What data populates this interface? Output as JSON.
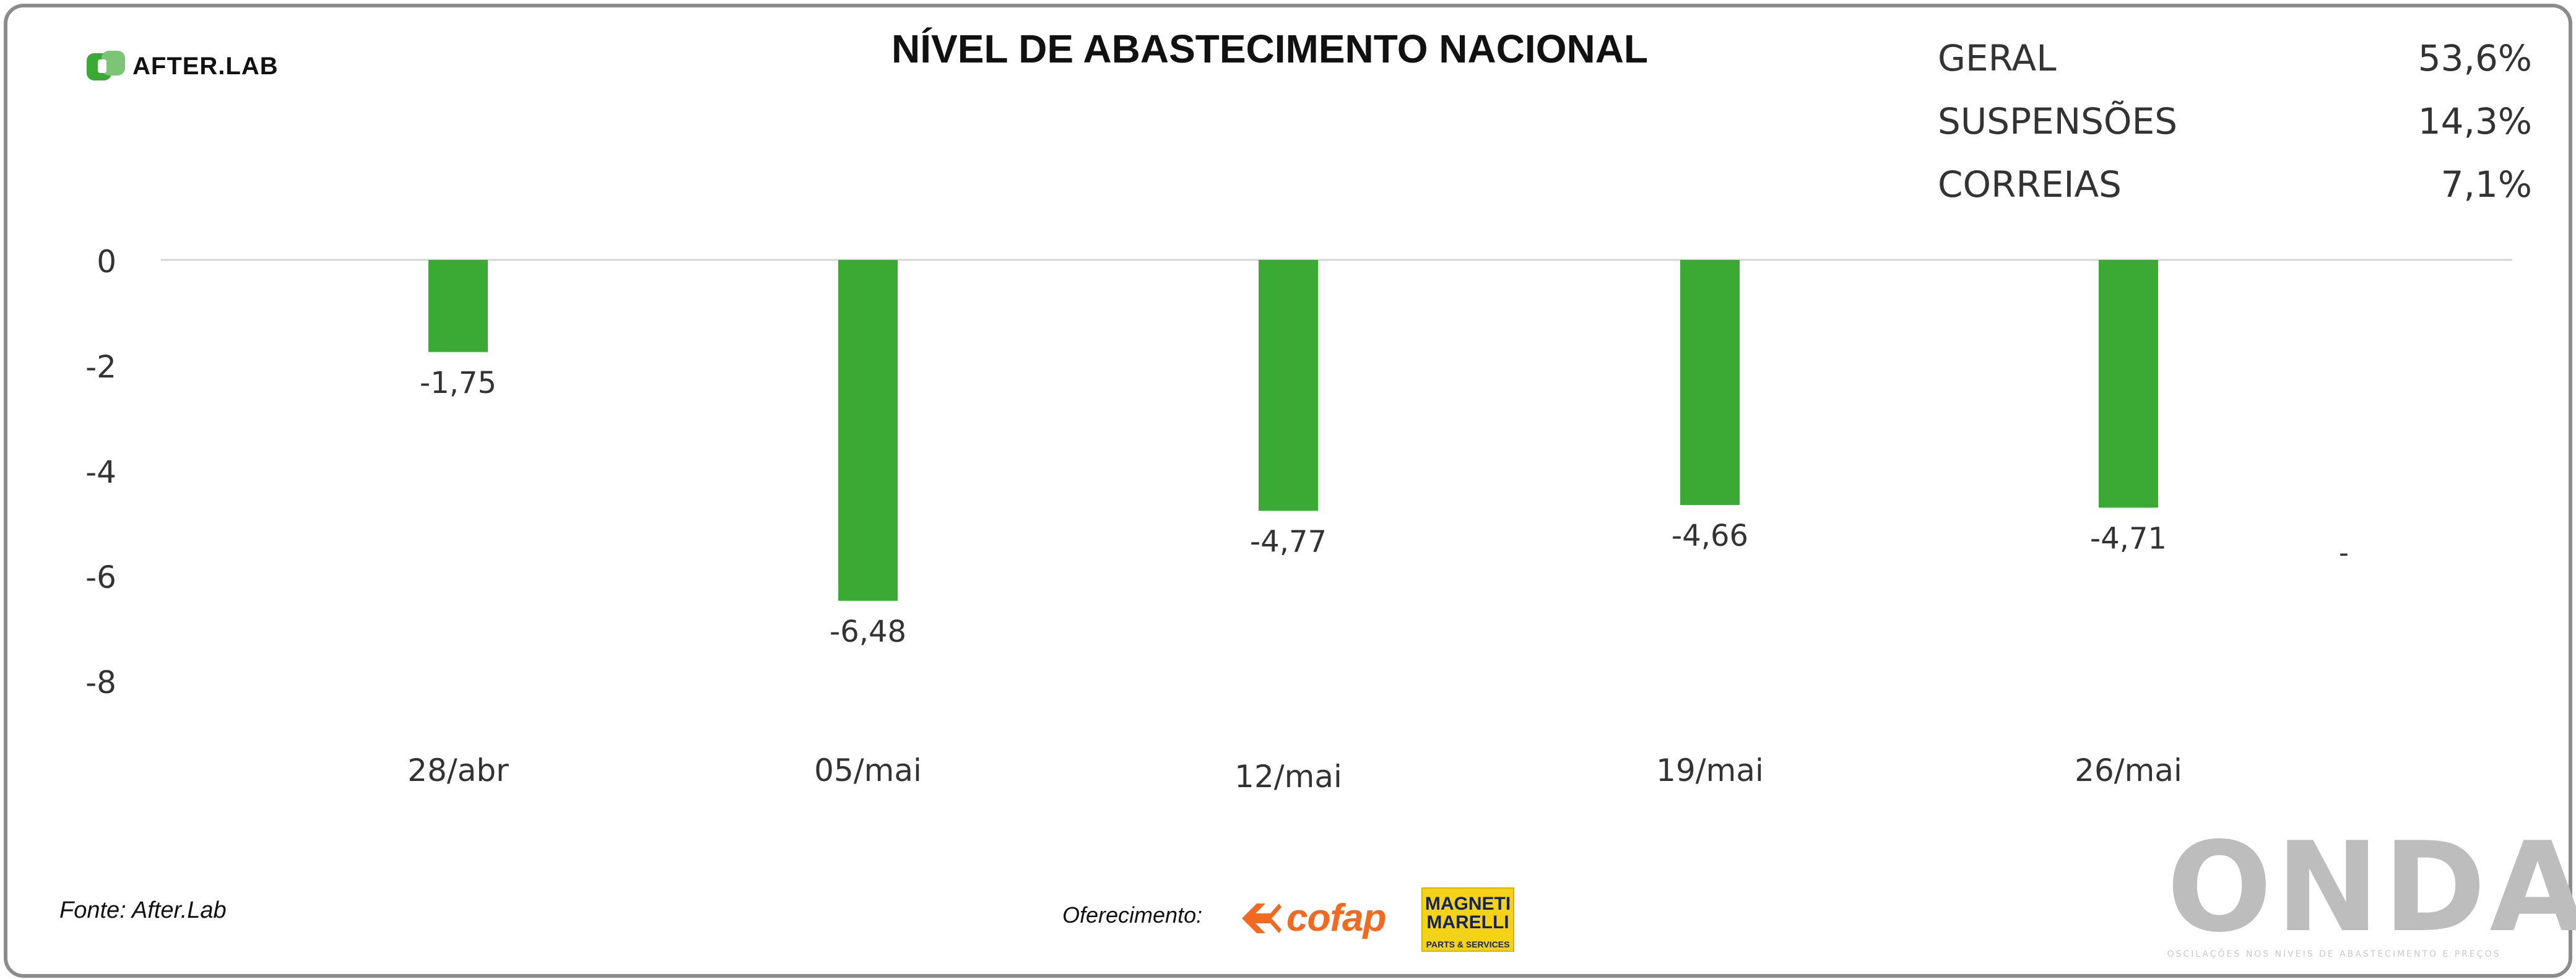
{
  "header": {
    "brand": "AFTER.LAB",
    "title": "NÍVEL DE ABASTECIMENTO NACIONAL"
  },
  "stats": [
    {
      "label": "GERAL",
      "value": "53,6%"
    },
    {
      "label": "SUSPENSÕES",
      "value": "14,3%"
    },
    {
      "label": "CORREIAS",
      "value": "7,1%"
    }
  ],
  "chart_data": {
    "type": "bar",
    "title": "NÍVEL DE ABASTECIMENTO NACIONAL",
    "categories": [
      "28/abr",
      "05/mai",
      "12/mai",
      "19/mai",
      "26/mai"
    ],
    "values": [
      -1.75,
      -6.48,
      -4.77,
      -4.66,
      -4.71
    ],
    "value_labels": [
      "-1,75",
      "-6,48",
      "-4,77",
      "-4,66",
      "-4,71"
    ],
    "extra_label": "-",
    "y_ticks": [
      0,
      -2,
      -4,
      -6,
      -8
    ],
    "ylim": [
      -8,
      0
    ],
    "bar_color": "#3aaa35",
    "grid": false
  },
  "footer": {
    "source": "Fonte: After.Lab",
    "sponsor_label": "Oferecimento:",
    "sponsor_1": "cofap",
    "sponsor_2_line1": "MAGNETI MARELLI",
    "sponsor_2_line2": "PARTS & SERVICES",
    "onda": "ONDA",
    "onda_tagline": "OSCILAÇÕES NOS NÍVEIS DE ABASTECIMENTO E PREÇOS"
  },
  "colors": {
    "brand_green": "#3aaa35",
    "cofap_orange": "#f26a21",
    "magneti_yellow": "#f5d21a",
    "onda_gray": "#bdbdbd"
  }
}
